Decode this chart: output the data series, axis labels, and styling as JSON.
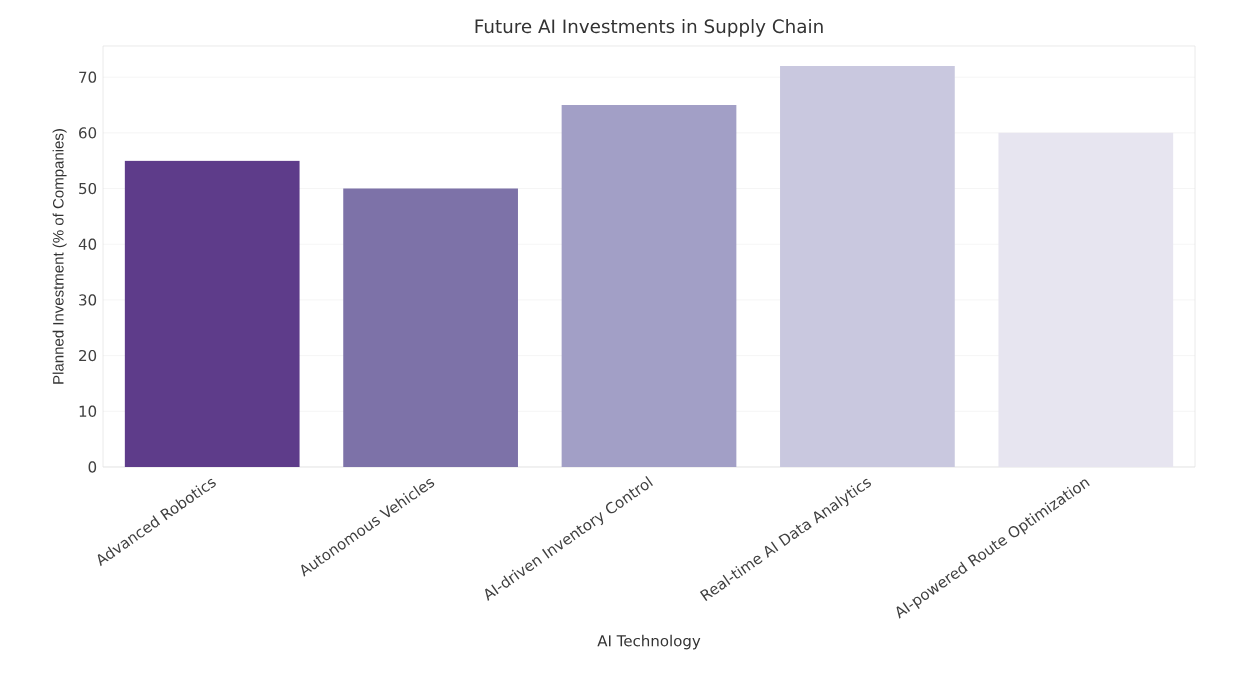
{
  "chart_data": {
    "type": "bar",
    "title": "Future AI Investments in Supply Chain",
    "xlabel": "AI Technology",
    "ylabel": "Planned Investment (% of Companies)",
    "categories": [
      "Advanced Robotics",
      "Autonomous Vehicles",
      "AI-driven Inventory Control",
      "Real-time AI Data Analytics",
      "AI-powered Route Optimization"
    ],
    "values": [
      55,
      50,
      65,
      72,
      60
    ],
    "colors": [
      "#5e3c8a",
      "#7d72a8",
      "#a29fc6",
      "#c9c8df",
      "#e7e5f0"
    ],
    "ylim": [
      0,
      75.6
    ],
    "yticks": [
      0,
      10,
      20,
      30,
      40,
      50,
      60,
      70
    ],
    "grid": "y"
  }
}
